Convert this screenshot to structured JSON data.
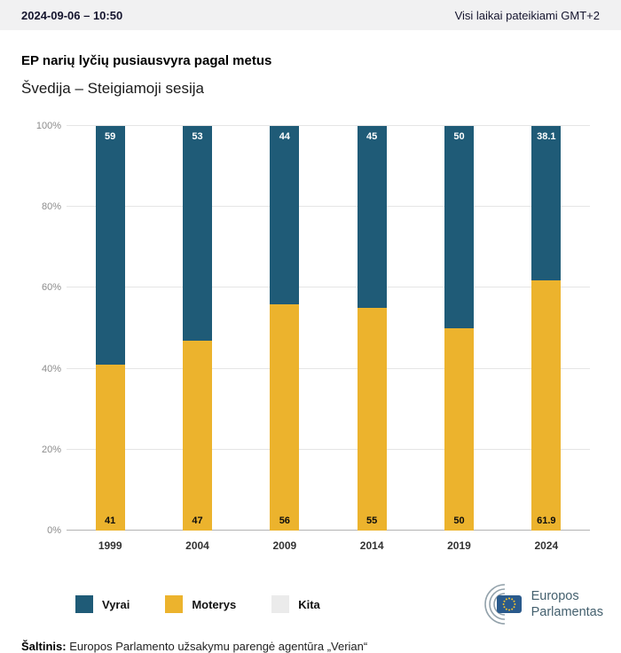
{
  "header": {
    "datetime": "2024-09-06 – 10:50",
    "timezone_note": "Visi laikai pateikiami GMT+2"
  },
  "title": "EP narių lyčių pusiausvyra pagal metus",
  "subtitle": "Švedija – Steigiamoji sesija",
  "chart_data": {
    "type": "bar",
    "stacked": true,
    "title": "EP narių lyčių pusiausvyra pagal metus",
    "categories": [
      "1999",
      "2004",
      "2009",
      "2014",
      "2019",
      "2024"
    ],
    "series": [
      {
        "name": "Vyrai",
        "color": "#1f5b77",
        "values": [
          59,
          53,
          44,
          45,
          50,
          38.1
        ]
      },
      {
        "name": "Moterys",
        "color": "#ecb32d",
        "values": [
          41,
          47,
          56,
          55,
          50,
          61.9
        ]
      },
      {
        "name": "Kita",
        "color": "#ebebeb",
        "values": [
          0,
          0,
          0,
          0,
          0,
          0
        ]
      }
    ],
    "xlabel": "",
    "ylabel": "",
    "ylim": [
      0,
      100
    ],
    "yticks": [
      "0%",
      "20%",
      "40%",
      "60%",
      "80%",
      "100%"
    ],
    "grid": true,
    "legend_position": "bottom"
  },
  "legend": [
    {
      "label": "Vyrai",
      "color": "#1f5b77"
    },
    {
      "label": "Moterys",
      "color": "#ecb32d"
    },
    {
      "label": "Kita",
      "color": "#ebebeb"
    }
  ],
  "logo": {
    "line1": "Europos",
    "line2": "Parlamentas"
  },
  "source": {
    "label": "Šaltinis:",
    "text": " Europos Parlamento užsakymu parengė agentūra „Verian“"
  }
}
